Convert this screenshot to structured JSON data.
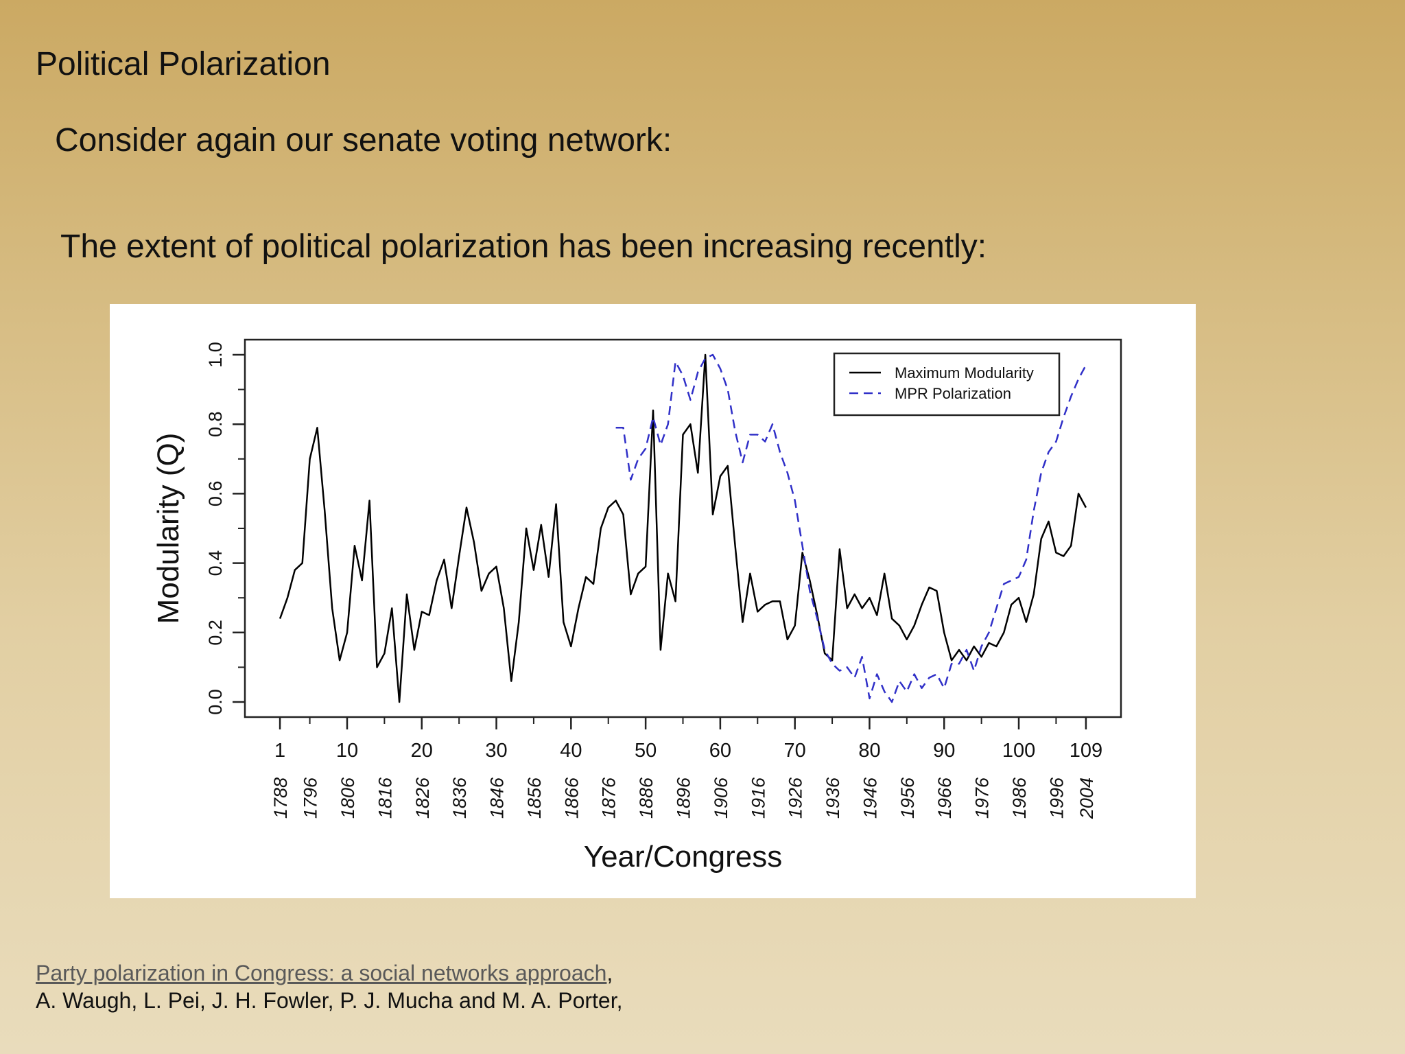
{
  "slide": {
    "title": "Political Polarization",
    "bullet_1": "Consider again our senate voting network:",
    "bullet_2": "The extent of political polarization has been increasing recently:"
  },
  "reference": {
    "link_text": "Party polarization in Congress: a social networks approach",
    "after_link": ",",
    "authors": "A. Waugh, L. Pei, J. H. Fowler, P. J. Mucha and M. A. Porter,"
  },
  "colors": {
    "background_top": "#cba963",
    "background_bottom": "#e9dcbc",
    "modularity_line": "#000000",
    "polarization_line": "#3030c8"
  },
  "chart_data": {
    "type": "line",
    "xlabel": "Year/Congress",
    "ylabel": "Modularity (Q)",
    "xlim": [
      1,
      109
    ],
    "ylim": [
      0,
      1
    ],
    "grid": false,
    "legend_position": "top-right",
    "yticks": [
      "0.0",
      "0.2",
      "0.4",
      "0.6",
      "0.8",
      "1.0"
    ],
    "xticks": [
      1,
      10,
      20,
      30,
      40,
      50,
      60,
      70,
      80,
      90,
      100,
      109
    ],
    "xtick_labels": [
      "1",
      "10",
      "20",
      "30",
      "40",
      "50",
      "60",
      "70",
      "80",
      "90",
      "100",
      "109"
    ],
    "year_ticks": [
      {
        "congress": 1,
        "year": "1788"
      },
      {
        "congress": 5,
        "year": "1796"
      },
      {
        "congress": 10,
        "year": "1806"
      },
      {
        "congress": 15,
        "year": "1816"
      },
      {
        "congress": 20,
        "year": "1826"
      },
      {
        "congress": 25,
        "year": "1836"
      },
      {
        "congress": 30,
        "year": "1846"
      },
      {
        "congress": 35,
        "year": "1856"
      },
      {
        "congress": 40,
        "year": "1866"
      },
      {
        "congress": 45,
        "year": "1876"
      },
      {
        "congress": 50,
        "year": "1886"
      },
      {
        "congress": 55,
        "year": "1896"
      },
      {
        "congress": 60,
        "year": "1906"
      },
      {
        "congress": 65,
        "year": "1916"
      },
      {
        "congress": 70,
        "year": "1926"
      },
      {
        "congress": 75,
        "year": "1936"
      },
      {
        "congress": 80,
        "year": "1946"
      },
      {
        "congress": 85,
        "year": "1956"
      },
      {
        "congress": 90,
        "year": "1966"
      },
      {
        "congress": 95,
        "year": "1976"
      },
      {
        "congress": 100,
        "year": "1986"
      },
      {
        "congress": 105,
        "year": "1996"
      },
      {
        "congress": 109,
        "year": "2004"
      }
    ],
    "series": [
      {
        "name": "Maximum Modularity",
        "style": "solid",
        "x": [
          1,
          2,
          3,
          4,
          5,
          6,
          7,
          8,
          9,
          10,
          11,
          12,
          13,
          14,
          15,
          16,
          17,
          18,
          19,
          20,
          21,
          22,
          23,
          24,
          25,
          26,
          27,
          28,
          29,
          30,
          31,
          32,
          33,
          34,
          35,
          36,
          37,
          38,
          39,
          40,
          41,
          42,
          43,
          44,
          45,
          46,
          47,
          48,
          49,
          50,
          51,
          52,
          53,
          54,
          55,
          56,
          57,
          58,
          59,
          60,
          61,
          62,
          63,
          64,
          65,
          66,
          67,
          68,
          69,
          70,
          71,
          72,
          73,
          74,
          75,
          76,
          77,
          78,
          79,
          80,
          81,
          82,
          83,
          84,
          85,
          86,
          87,
          88,
          89,
          90,
          91,
          92,
          93,
          94,
          95,
          96,
          97,
          98,
          99,
          100,
          101,
          102,
          103,
          104,
          105,
          106,
          107,
          108,
          109
        ],
        "values": [
          0.24,
          0.3,
          0.38,
          0.4,
          0.7,
          0.79,
          0.55,
          0.27,
          0.12,
          0.2,
          0.45,
          0.35,
          0.58,
          0.1,
          0.14,
          0.27,
          0.0,
          0.31,
          0.15,
          0.26,
          0.25,
          0.35,
          0.41,
          0.27,
          0.42,
          0.56,
          0.46,
          0.32,
          0.37,
          0.39,
          0.27,
          0.06,
          0.23,
          0.5,
          0.38,
          0.51,
          0.36,
          0.57,
          0.23,
          0.16,
          0.27,
          0.36,
          0.34,
          0.5,
          0.56,
          0.58,
          0.54,
          0.31,
          0.37,
          0.39,
          0.84,
          0.15,
          0.37,
          0.29,
          0.77,
          0.8,
          0.66,
          1.0,
          0.54,
          0.65,
          0.68,
          0.45,
          0.23,
          0.37,
          0.26,
          0.28,
          0.29,
          0.29,
          0.18,
          0.22,
          0.43,
          0.35,
          0.25,
          0.14,
          0.12,
          0.44,
          0.27,
          0.31,
          0.27,
          0.3,
          0.25,
          0.37,
          0.24,
          0.22,
          0.18,
          0.22,
          0.28,
          0.33,
          0.32,
          0.2,
          0.12,
          0.15,
          0.12,
          0.16,
          0.13,
          0.17,
          0.16,
          0.2,
          0.28,
          0.3,
          0.23,
          0.31,
          0.47,
          0.52,
          0.43,
          0.42,
          0.45,
          0.6,
          0.56
        ]
      },
      {
        "name": "MPR Polarization",
        "style": "dashed",
        "x": [
          46,
          47,
          48,
          49,
          50,
          51,
          52,
          53,
          54,
          55,
          56,
          57,
          58,
          59,
          60,
          61,
          62,
          63,
          64,
          65,
          66,
          67,
          68,
          69,
          70,
          71,
          72,
          73,
          74,
          75,
          76,
          77,
          78,
          79,
          80,
          81,
          82,
          83,
          84,
          85,
          86,
          87,
          88,
          89,
          90,
          91,
          92,
          93,
          94,
          95,
          96,
          97,
          98,
          99,
          100,
          101,
          102,
          103,
          104,
          105,
          106,
          107,
          108,
          109
        ],
        "values": [
          0.79,
          0.79,
          0.64,
          0.7,
          0.73,
          0.82,
          0.74,
          0.8,
          0.98,
          0.94,
          0.87,
          0.95,
          0.99,
          1.0,
          0.96,
          0.9,
          0.78,
          0.69,
          0.77,
          0.77,
          0.75,
          0.8,
          0.72,
          0.66,
          0.58,
          0.45,
          0.32,
          0.24,
          0.15,
          0.11,
          0.09,
          0.1,
          0.07,
          0.13,
          0.01,
          0.08,
          0.03,
          0.0,
          0.06,
          0.03,
          0.08,
          0.04,
          0.07,
          0.08,
          0.04,
          0.11,
          0.11,
          0.15,
          0.09,
          0.16,
          0.2,
          0.27,
          0.34,
          0.35,
          0.36,
          0.41,
          0.55,
          0.66,
          0.72,
          0.75,
          0.82,
          0.88,
          0.93,
          0.97
        ]
      }
    ]
  }
}
